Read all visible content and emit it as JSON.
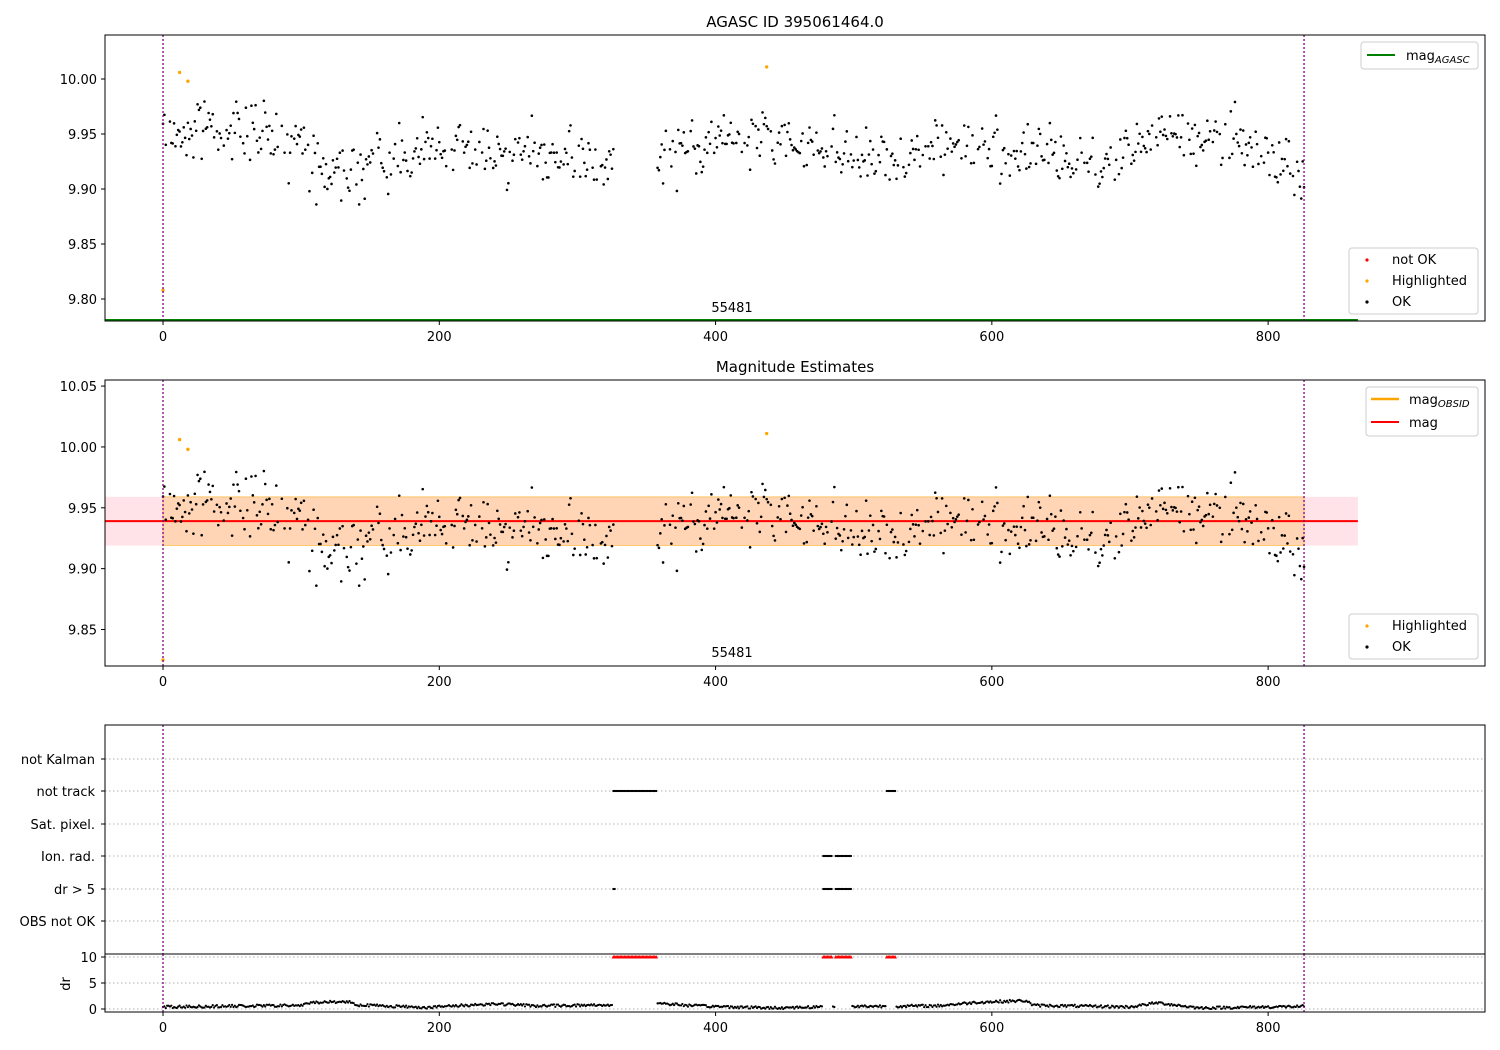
{
  "chart_data": [
    {
      "type": "scatter",
      "title": "AGASC ID 395061464.0",
      "annotation": "55481",
      "xlim": [
        -42,
        957
      ],
      "ylim": [
        9.78,
        10.04
      ],
      "x_ticks": [
        0,
        200,
        400,
        600,
        800
      ],
      "y_ticks": [
        9.8,
        9.85,
        9.9,
        9.95,
        10.0
      ],
      "x_tick_labels": [
        "0",
        "200",
        "400",
        "600",
        "800"
      ],
      "y_tick_labels": [
        "9.80",
        "9.85",
        "9.90",
        "9.95",
        "10.00"
      ],
      "vlines": [
        0,
        826
      ],
      "mag_agasc_value": 9.78,
      "mag_agasc_xrange": [
        -42,
        865
      ],
      "legend_lines": [
        {
          "label": "mag",
          "subscript": "AGASC",
          "color": "#008000"
        }
      ],
      "legend_points": [
        {
          "label": "not OK",
          "color": "#ff0000"
        },
        {
          "label": "Highlighted",
          "color": "#ffa500"
        },
        {
          "label": "OK",
          "color": "#000000"
        }
      ],
      "highlighted": [
        [
          0,
          9.808
        ],
        [
          12,
          10.006
        ],
        [
          18,
          9.998
        ],
        [
          437,
          10.011
        ]
      ]
    },
    {
      "type": "scatter",
      "title": "Magnitude Estimates",
      "annotation": "55481",
      "xlim": [
        -42,
        957
      ],
      "ylim": [
        9.82,
        10.055
      ],
      "x_ticks": [
        0,
        200,
        400,
        600,
        800
      ],
      "y_ticks": [
        9.85,
        9.9,
        9.95,
        10.0,
        10.05
      ],
      "x_tick_labels": [
        "0",
        "200",
        "400",
        "600",
        "800"
      ],
      "y_tick_labels": [
        "9.85",
        "9.90",
        "9.95",
        "10.00",
        "10.05"
      ],
      "vlines": [
        0,
        826
      ],
      "mag": 9.939,
      "mag_xrange": [
        -42,
        865
      ],
      "band_outer": [
        9.919,
        9.959
      ],
      "legend_lines": [
        {
          "label": "mag",
          "subscript": "OBSID",
          "color": "#ffa500"
        },
        {
          "label": "mag",
          "subscript": "",
          "color": "#ff0000"
        }
      ],
      "legend_points": [
        {
          "label": "Highlighted",
          "color": "#ffa500"
        },
        {
          "label": "OK",
          "color": "#000000"
        }
      ],
      "highlighted": [
        [
          0,
          9.825
        ],
        [
          12,
          10.006
        ],
        [
          18,
          9.998
        ],
        [
          437,
          10.011
        ]
      ]
    },
    {
      "type": "scatter",
      "title": "",
      "xlim": [
        -42,
        957
      ],
      "categories": [
        "not Kalman",
        "not track",
        "Sat. pixel.",
        "Ion. rad.",
        "dr > 5",
        "OBS not OK"
      ],
      "vlines": [
        0,
        826
      ],
      "flags": {
        "not track": [
          [
            326,
            357
          ],
          [
            524,
            530
          ]
        ],
        "Ion. rad.": [
          [
            478,
            484
          ],
          [
            487,
            498
          ]
        ],
        "dr > 5": [
          [
            326,
            327
          ],
          [
            478,
            484
          ],
          [
            487,
            498
          ]
        ]
      }
    },
    {
      "type": "scatter",
      "title": "",
      "ylabel": "dr",
      "xlim": [
        -42,
        957
      ],
      "ylim": [
        0,
        10
      ],
      "y_ticks": [
        0,
        5,
        10
      ],
      "x_ticks": [
        0,
        200,
        400,
        600,
        800
      ],
      "x_tick_labels": [
        "0",
        "200",
        "400",
        "600",
        "800"
      ],
      "y_tick_labels": [
        "0",
        "5",
        "10"
      ],
      "vlines": [
        0,
        826
      ],
      "clipped_at_10": [
        [
          326,
          357
        ],
        [
          478,
          484
        ],
        [
          487,
          498
        ],
        [
          524,
          530
        ]
      ]
    }
  ]
}
